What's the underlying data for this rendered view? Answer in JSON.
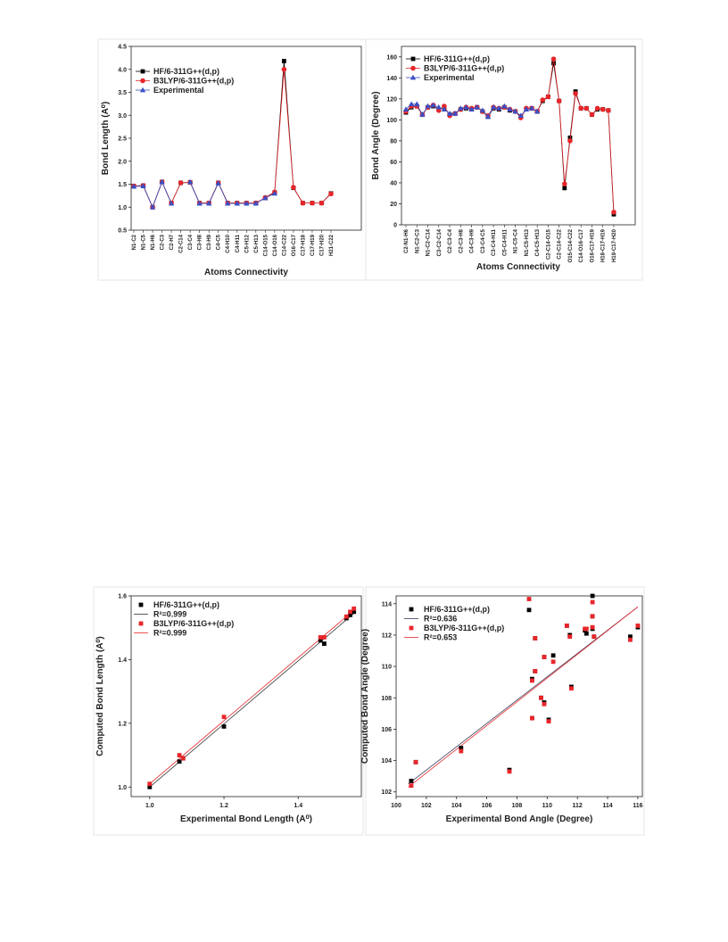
{
  "chart_data": [
    {
      "type": "line",
      "ylabel": "Bond Length (A⁰)",
      "xlabel": "Atoms Connectivity",
      "categories": [
        "N1-C2",
        "N1-C5",
        "N1-H6",
        "C2-C3",
        "C2-H7",
        "C2-C14",
        "C3-C4",
        "C3-H8",
        "C3-H9",
        "C4-C5",
        "C4-H10",
        "C4-H11",
        "C5-H12",
        "C5-H13",
        "C14-O15",
        "C14-O16",
        "C14-C22",
        "O16-C17",
        "C17-H18",
        "C17-H19",
        "C17-H20",
        "H21-C22"
      ],
      "ylim": [
        0.5,
        4.5
      ],
      "yticks": [
        0.5,
        {
          "value": 1,
          "label": "1.0"
        },
        1.5,
        {
          "value": 2,
          "label": "2.0"
        },
        2.5,
        {
          "value": 3,
          "label": "3.0"
        },
        3.5,
        {
          "value": 4,
          "label": "4.0"
        },
        4.5
      ],
      "series": [
        {
          "name": "HF/6-311G++(d,p)",
          "color": "#000000",
          "marker": "square",
          "values": [
            1.46,
            1.47,
            1.0,
            1.55,
            1.09,
            1.53,
            1.54,
            1.09,
            1.09,
            1.53,
            1.09,
            1.09,
            1.09,
            1.09,
            1.2,
            1.32,
            4.18,
            1.42,
            1.09,
            1.09,
            1.09,
            1.3
          ]
        },
        {
          "name": "B3LYP/6-311G++(d,p)",
          "color": "#e8262a",
          "marker": "circle",
          "values": [
            1.46,
            1.47,
            1.0,
            1.55,
            1.09,
            1.53,
            1.54,
            1.09,
            1.09,
            1.53,
            1.09,
            1.09,
            1.09,
            1.09,
            1.21,
            1.33,
            4.0,
            1.43,
            1.09,
            1.09,
            1.09,
            1.29
          ]
        },
        {
          "name": "Experimental",
          "color": "#3b4fc4",
          "marker": "triangle",
          "values": [
            1.45,
            1.46,
            1.0,
            1.55,
            1.08,
            null,
            1.55,
            1.08,
            1.08,
            1.52,
            1.08,
            1.08,
            1.08,
            1.08,
            1.2,
            1.3,
            null,
            null,
            null,
            null,
            null,
            null
          ]
        }
      ]
    },
    {
      "type": "line",
      "ylabel": "Bond Angle (Degree)",
      "xlabel": "Atoms Connectivity",
      "categories": [
        "C2-N1-H6",
        null,
        "N1-C2-C3",
        null,
        "N1-C2-C14",
        null,
        "C3-C2-C14",
        null,
        "C2-C3-C4",
        null,
        "C2-C3-H8",
        null,
        "C4-C3-H9",
        null,
        "C3-C4-C5",
        null,
        "C3-C4-H11",
        null,
        "C5-C4-H11",
        null,
        "N1-C5-C4",
        null,
        "N1-C5-H13",
        null,
        "C4-C5-H13",
        null,
        "C2-C14-O15",
        null,
        "C2-C14-C22",
        null,
        "O15-C14-C22",
        null,
        "C14-O16-C17",
        null,
        "O16-C17-H19",
        null,
        "H18-C17-H19",
        null,
        "H19-C17-H20"
      ],
      "ylim": [
        0,
        170
      ],
      "yticks": [
        0,
        20,
        40,
        60,
        80,
        100,
        120,
        140,
        160
      ],
      "series": [
        {
          "name": "HF/6-311G++(d,p)",
          "color": "#000000",
          "marker": "square",
          "values": [
            107,
            112,
            113,
            105,
            112,
            113,
            110,
            112,
            105,
            106,
            110,
            111,
            110,
            112,
            108,
            103,
            111,
            110,
            112,
            109,
            108,
            103,
            110,
            111,
            108,
            118,
            122,
            154,
            118,
            35,
            83,
            127,
            111,
            111,
            105,
            110,
            110,
            109,
            10
          ]
        },
        {
          "name": "B3LYP/6-311G++(d,p)",
          "color": "#e8262a",
          "marker": "circle",
          "values": [
            108,
            113,
            113,
            105,
            112,
            114,
            109,
            113,
            104,
            106,
            110,
            112,
            111,
            112,
            108,
            104,
            112,
            111,
            112,
            110,
            108,
            102,
            111,
            111,
            108,
            119,
            122,
            158,
            118,
            39,
            80,
            125,
            111,
            111,
            105,
            111,
            110,
            109,
            12
          ]
        },
        {
          "name": "Experimental",
          "color": "#3b4fc4",
          "marker": "triangle",
          "values": [
            110,
            115,
            115,
            105,
            113,
            114,
            112,
            110,
            106,
            106,
            111,
            112,
            110,
            112,
            109,
            103,
            112,
            111,
            113,
            110,
            108,
            104,
            110,
            111,
            108,
            null,
            null,
            null,
            null,
            null,
            null,
            null,
            null,
            null,
            null,
            null,
            null,
            null,
            null
          ]
        }
      ]
    },
    {
      "type": "scatter",
      "ylabel": "Computed Bond Length (A⁰)",
      "xlabel": "Experimental Bond Length (A⁰)",
      "xlim": [
        0.95,
        1.57
      ],
      "ylim": [
        0.97,
        1.6
      ],
      "xticks": [
        {
          "value": 1,
          "label": "1.0"
        },
        1.2,
        1.4
      ],
      "yticks": [
        {
          "value": 1,
          "label": "1.0"
        },
        1.2,
        1.4,
        1.6
      ],
      "series": [
        {
          "name": "HF/6-311G++(d,p)",
          "color": "#000000",
          "kind": "points",
          "x": [
            1.0,
            1.08,
            1.09,
            1.2,
            1.46,
            1.47,
            1.53,
            1.54,
            1.55
          ],
          "values": [
            1.0,
            1.08,
            1.09,
            1.19,
            1.46,
            1.45,
            1.53,
            1.54,
            1.55
          ]
        },
        {
          "name": "R²=0.999",
          "color": "#333333",
          "kind": "fit",
          "x": [
            1.0,
            1.555
          ],
          "values": [
            1.0,
            1.55
          ]
        },
        {
          "name": "B3LYP/6-311G++(d,p)",
          "color": "#e8262a",
          "kind": "points",
          "x": [
            1.0,
            1.08,
            1.09,
            1.2,
            1.46,
            1.47,
            1.53,
            1.54,
            1.55
          ],
          "values": [
            1.01,
            1.1,
            1.09,
            1.22,
            1.47,
            1.47,
            1.535,
            1.55,
            1.56
          ]
        },
        {
          "name": "R²=0.999",
          "color": "#e8262a",
          "kind": "fit",
          "x": [
            1.0,
            1.555
          ],
          "values": [
            1.01,
            1.56
          ]
        }
      ]
    },
    {
      "type": "scatter",
      "ylabel": "Computed Bond Angle (Degree)",
      "xlabel": "Experimental Bond Angle (Degree)",
      "xlim": [
        100,
        116.3
      ],
      "ylim": [
        101.7,
        114.5
      ],
      "xticks": [
        100,
        102,
        104,
        106,
        108,
        110,
        112,
        114,
        116
      ],
      "yticks": [
        102,
        104,
        106,
        108,
        110,
        112,
        114
      ],
      "series": [
        {
          "name": "HF/6-311G++(d,p)",
          "color": "#000000",
          "kind": "points",
          "x": [
            101,
            101.3,
            104.3,
            107.5,
            108.8,
            109,
            109,
            109.2,
            109.2,
            109.6,
            109.8,
            109.8,
            110.1,
            110.4,
            111.3,
            111.5,
            111.6,
            112.5,
            112.6,
            113,
            113,
            113,
            113.1,
            115.5,
            116
          ],
          "values": [
            102.7,
            103.9,
            104.8,
            103.4,
            113.6,
            109.2,
            106.7,
            109.7,
            111.8,
            108,
            107.7,
            110.6,
            106.6,
            110.7,
            112.6,
            112,
            108.7,
            112.3,
            112.1,
            113.2,
            114.5,
            112.4,
            111.9,
            111.9,
            112.5
          ]
        },
        {
          "name": "R²=0.636",
          "color": "#3a3a5a",
          "kind": "fit",
          "x": [
            100.8,
            116
          ],
          "values": [
            102.5,
            113.8
          ]
        },
        {
          "name": "B3LYP/6-311G++(d,p)",
          "color": "#e8262a",
          "kind": "points",
          "x": [
            101,
            101.3,
            104.3,
            107.5,
            108.8,
            109,
            109,
            109.2,
            109.2,
            109.6,
            109.8,
            109.8,
            110.1,
            110.4,
            111.3,
            111.5,
            111.6,
            112.5,
            112.6,
            113,
            113,
            113,
            113.1,
            115.5,
            116
          ],
          "values": [
            102.4,
            103.9,
            104.6,
            103.3,
            114.3,
            109.1,
            106.7,
            109.7,
            111.8,
            108,
            107.6,
            110.6,
            106.5,
            110.3,
            112.6,
            111.9,
            108.6,
            112.4,
            112.4,
            113.2,
            114.1,
            112.5,
            111.9,
            111.7,
            112.6
          ]
        },
        {
          "name": "R²=0.653",
          "color": "#e8262a",
          "kind": "fit",
          "x": [
            100.8,
            116
          ],
          "values": [
            102.3,
            113.8
          ]
        }
      ]
    }
  ]
}
